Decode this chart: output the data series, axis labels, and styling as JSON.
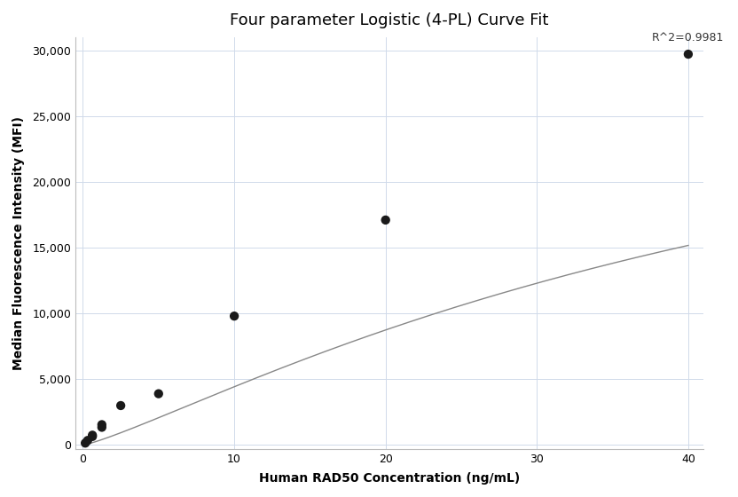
{
  "title": "Four parameter Logistic (4-PL) Curve Fit",
  "xlabel": "Human RAD50 Concentration (ng/mL)",
  "ylabel": "Median Fluorescence Intensity (MFI)",
  "scatter_x": [
    0.156,
    0.313,
    0.625,
    0.625,
    1.25,
    1.25,
    2.5,
    5.0,
    10.0,
    20.0,
    40.0
  ],
  "scatter_y": [
    150,
    350,
    650,
    750,
    1350,
    1550,
    3000,
    3900,
    9800,
    17100,
    29700
  ],
  "r2_text": "R^2=0.9981",
  "xlim": [
    -0.5,
    41
  ],
  "ylim": [
    -300,
    31000
  ],
  "xticks": [
    0,
    10,
    20,
    30,
    40
  ],
  "yticks": [
    0,
    5000,
    10000,
    15000,
    20000,
    25000,
    30000
  ],
  "curve_color": "#888888",
  "scatter_color": "#1a1a1a",
  "grid_color": "#d0daea",
  "bg_color": "#ffffff",
  "title_fontsize": 13,
  "label_fontsize": 10,
  "tick_fontsize": 9,
  "scatter_size": 55
}
